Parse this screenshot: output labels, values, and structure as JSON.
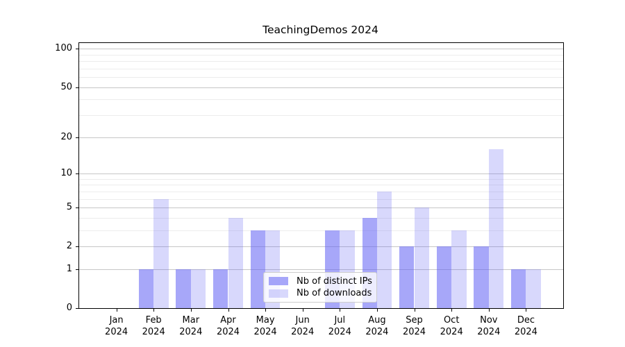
{
  "title": "TeachingDemos 2024",
  "legend": {
    "items": [
      {
        "label": "Nb of distinct IPs",
        "color": "#6565f591"
      },
      {
        "label": "Nb of downloads",
        "color": "#6565f540"
      }
    ]
  },
  "colors": {
    "ips_fill": "#6565f591",
    "downloads_fill": "#6565f540",
    "major_grid": "#c6c6c6",
    "minor_grid": "#ececec",
    "axis": "#000000"
  },
  "chart_data": {
    "type": "bar",
    "title": "TeachingDemos 2024",
    "categories": [
      "Jan 2024",
      "Feb 2024",
      "Mar 2024",
      "Apr 2024",
      "May 2024",
      "Jun 2024",
      "Jul 2024",
      "Aug 2024",
      "Sep 2024",
      "Oct 2024",
      "Nov 2024",
      "Dec 2024"
    ],
    "series": [
      {
        "name": "Nb of distinct IPs",
        "color": "#6565f591",
        "values": [
          0,
          1,
          1,
          1,
          3,
          0,
          3,
          4,
          2,
          2,
          2,
          1
        ]
      },
      {
        "name": "Nb of downloads",
        "color": "#6565f540",
        "values": [
          0,
          6,
          1,
          4,
          3,
          0,
          3,
          7,
          5,
          3,
          16,
          1
        ]
      }
    ],
    "xlabel": "",
    "ylabel": "",
    "yscale": "log1p",
    "ylim": [
      0,
      110
    ],
    "yticks": [
      0,
      1,
      2,
      5,
      10,
      20,
      50,
      100
    ],
    "minor_gridlines": [
      3,
      4,
      6,
      7,
      8,
      9,
      30,
      40,
      60,
      70,
      80,
      90
    ],
    "grid": true,
    "legend_position": "lower center"
  }
}
